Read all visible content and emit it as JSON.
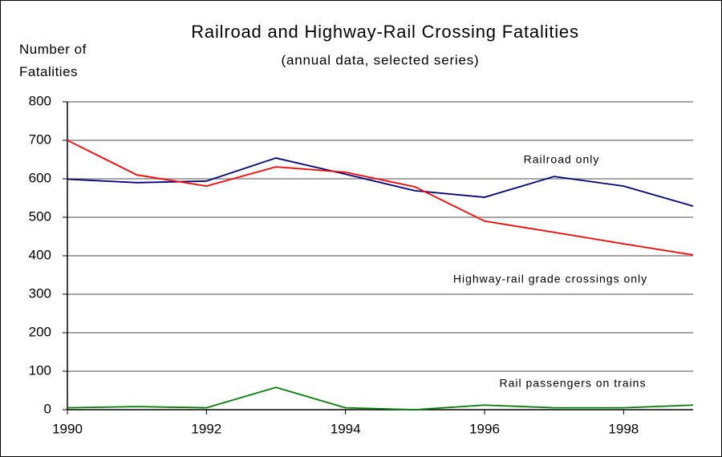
{
  "chart_data": {
    "type": "line",
    "title": "Railroad and Highway-Rail Crossing Fatalities",
    "subtitle": "(annual data, selected series)",
    "y_label": "Number of Fatalities",
    "x": [
      1990,
      1991,
      1992,
      1993,
      1994,
      1995,
      1996,
      1997,
      1998,
      1999
    ],
    "series": [
      {
        "name": "Railroad only",
        "color": "#000080",
        "values": [
          599,
          590,
          594,
          654,
          612,
          569,
          552,
          606,
          581,
          529
        ]
      },
      {
        "name": "Highway-rail grade crossings only",
        "color": "#ff0000",
        "values": [
          700,
          610,
          581,
          631,
          617,
          579,
          490,
          461,
          431,
          402
        ]
      },
      {
        "name": "Rail passengers on trains",
        "color": "#008000",
        "values": [
          5,
          8,
          5,
          58,
          5,
          0,
          12,
          5,
          5,
          12
        ]
      }
    ],
    "xlim": [
      1990,
      1999
    ],
    "xticks": [
      1990,
      1992,
      1994,
      1996,
      1998
    ],
    "ylim": [
      0,
      800
    ],
    "yticks": [
      0,
      100,
      200,
      300,
      400,
      500,
      600,
      700,
      800
    ],
    "grid": true
  }
}
